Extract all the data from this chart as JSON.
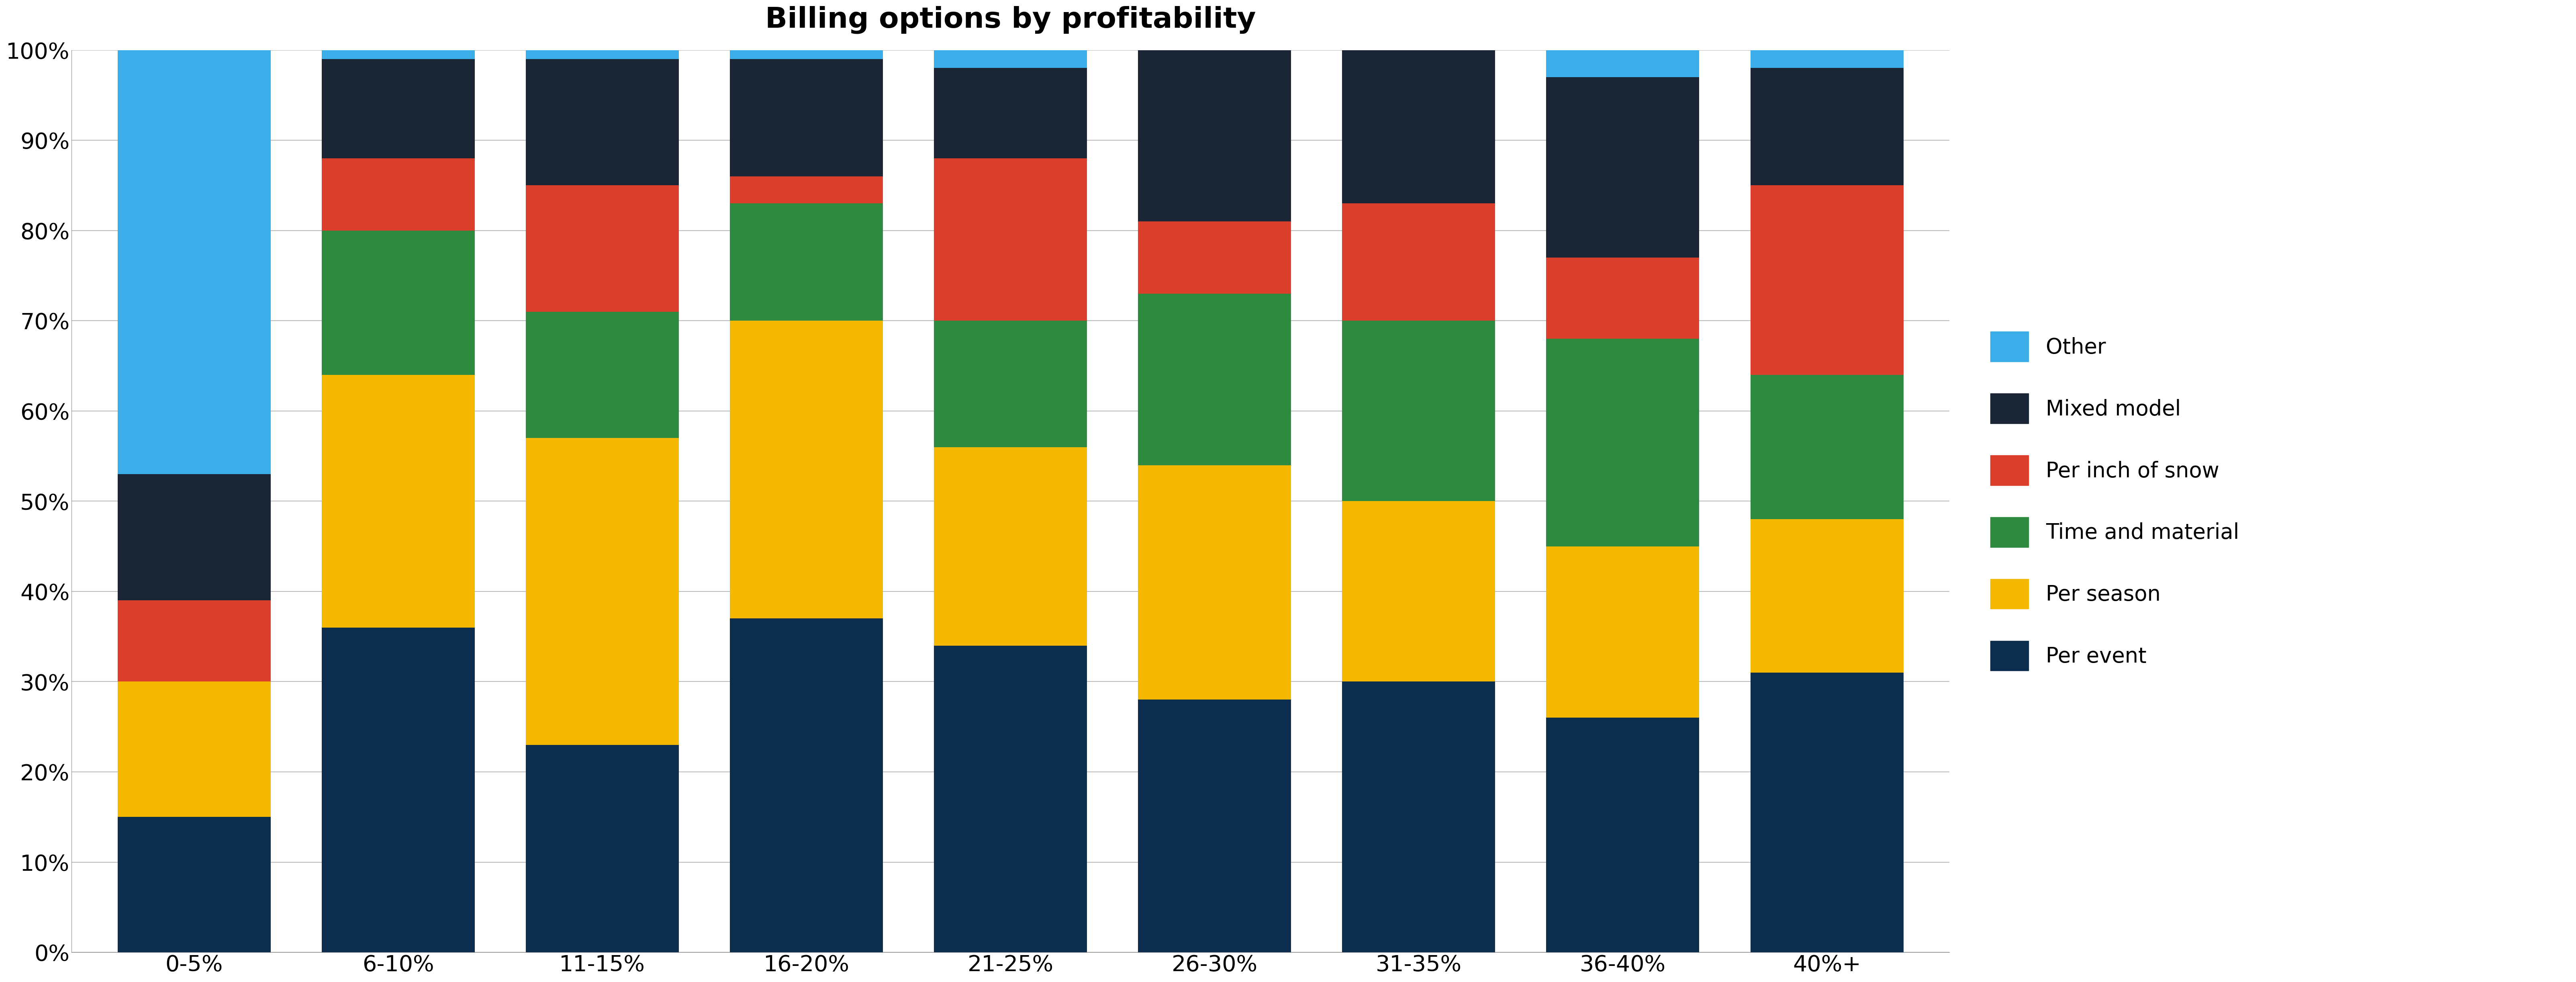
{
  "title": "Billing options by profitability",
  "title_fontsize": 52,
  "categories": [
    "0-5%",
    "6-10%",
    "11-15%",
    "16-20%",
    "21-25%",
    "26-30%",
    "31-35%",
    "36-40%",
    "40%+"
  ],
  "series": {
    "Per event": [
      15,
      36,
      23,
      37,
      34,
      28,
      30,
      26,
      31
    ],
    "Per season": [
      15,
      28,
      34,
      33,
      22,
      26,
      20,
      19,
      17
    ],
    "Time and material": [
      0,
      16,
      14,
      13,
      14,
      19,
      20,
      23,
      16
    ],
    "Per inch of snow": [
      9,
      8,
      14,
      3,
      18,
      8,
      13,
      9,
      21
    ],
    "Mixed model": [
      14,
      11,
      14,
      13,
      10,
      19,
      17,
      20,
      13
    ],
    "Other": [
      47,
      1,
      1,
      1,
      2,
      0,
      0,
      3,
      2
    ]
  },
  "colors": {
    "Per event": "#0d2d4e",
    "Per season": "#f5b800",
    "Time and material": "#2d8a3e",
    "Per inch of snow": "#d93f2a",
    "Mixed model": "#1a2535",
    "Other": "#3baee9"
  },
  "legend_order": [
    "Other",
    "Mixed model",
    "Per inch of snow",
    "Time and material",
    "Per season",
    "Per event"
  ],
  "ylim": [
    0,
    100
  ],
  "figsize": [
    64.13,
    24.44
  ],
  "dpi": 100,
  "bar_width": 0.75,
  "tick_fontsize": 40,
  "legend_fontsize": 38
}
